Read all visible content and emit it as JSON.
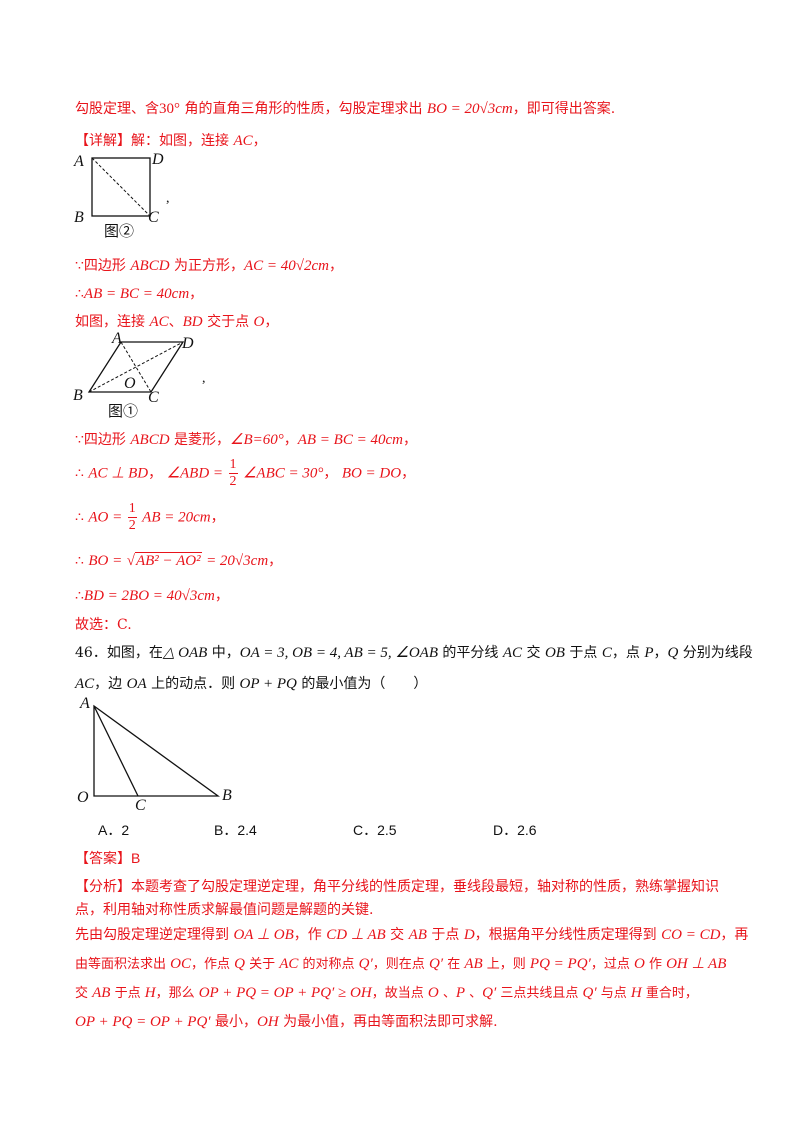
{
  "l1": {
    "pre": "勾股定理、含",
    "deg": "30°",
    "mid": " 角的直角三角形的性质，勾股定理求出 ",
    "eq": "BO = 20√3cm",
    "post": "，即可得出答案."
  },
  "l2": {
    "tag": "【详解】",
    "text": "解：如图，连接 ",
    "ac": "AC",
    "post": "，"
  },
  "fig2": {
    "A": "A",
    "B": "B",
    "C": "C",
    "D": "D",
    "caption": "图②",
    "comma": ","
  },
  "l3": {
    "because": "∵",
    "text": "四边形 ",
    "abcd": "ABCD",
    "mid": " 为正方形，",
    "eq": "AC = 40√2cm",
    "post": "，"
  },
  "l4": {
    "therefore": "∴",
    "eq": "AB = BC = 40cm",
    "post": "，"
  },
  "l5": {
    "text": "如图，连接 ",
    "ac": "AC",
    "sep": "、",
    "bd": "BD",
    "mid": " 交于点 ",
    "o": "O",
    "post": "，"
  },
  "fig1": {
    "A": "A",
    "B": "B",
    "C": "C",
    "D": "D",
    "O": "O",
    "caption": "图①",
    "comma": ","
  },
  "l6": {
    "because": "∵",
    "text": "四边形 ",
    "abcd": "ABCD",
    "mid": " 是菱形，",
    "angle": "∠B=60°",
    "sep": "，",
    "eq": "AB = BC = 40cm",
    "post": "，"
  },
  "l7": {
    "therefore": "∴",
    "perp": "AC ⊥ BD",
    "sep": "，",
    "lhs": "∠ABD =",
    "num": "1",
    "den": "2",
    "rhs": "∠ABC = 30°",
    "sep2": "，",
    "eq": "BO = DO",
    "post": "，"
  },
  "l8": {
    "therefore": "∴",
    "lhs": "AO =",
    "num": "1",
    "den": "2",
    "rhs": "AB = 20cm",
    "post": "，"
  },
  "l9": {
    "therefore": "∴",
    "lhs": "BO =",
    "rad": "AB² − AO²",
    "rhs": "= 20√3cm",
    "post": "，"
  },
  "l10": {
    "therefore": "∴",
    "eq": "BD = 2BO = 40√3cm",
    "post": "，"
  },
  "l11": {
    "text": "故选：C."
  },
  "q46": {
    "num": "46．",
    "text1": "如图，在",
    "tri": "△ OAB",
    "text2": " 中，",
    "cond": "OA = 3, OB = 4, AB = 5, ∠OAB",
    "text3": " 的平分线 ",
    "ac": "AC",
    "text4": " 交 ",
    "ob": "OB",
    "text5": " 于点 ",
    "c": "C",
    "text6": "，点 ",
    "p": "P",
    "text7": "，",
    "q": "Q",
    "text8": " 分别为线段",
    "line2a": "AC",
    "line2b": "，边 ",
    "oa": "OA",
    "line2c": " 上的动点．则 ",
    "expr": "OP + PQ",
    "line2d": " 的最小值为（　　）"
  },
  "fig46": {
    "A": "A",
    "O": "O",
    "C": "C",
    "B": "B"
  },
  "options": [
    {
      "letter": "A．",
      "value": "2"
    },
    {
      "letter": "B．",
      "value": "2.4"
    },
    {
      "letter": "C．",
      "value": "2.5"
    },
    {
      "letter": "D．",
      "value": "2.6"
    }
  ],
  "answer": {
    "tag": "【答案】",
    "value": "B"
  },
  "analysis": {
    "tag": "【分析】",
    "p1": "本题考查了勾股定理逆定理，角平分线的性质定理，垂线段最短，轴对称的性质，熟练掌握知识",
    "p2": "点，利用轴对称性质求解最值问题是解题的关键.",
    "p3a": "先由勾股定理逆定理得到 ",
    "p3b": "OA ⊥ OB",
    "p3c": "，作 ",
    "p3d": "CD ⊥ AB",
    "p3e": " 交 ",
    "p3f": "AB",
    "p3g": " 于点 ",
    "p3h": "D",
    "p3i": "，根据角平分线性质定理得到 ",
    "p3j": "CO = CD",
    "p3k": "，再",
    "p4a": "由等面积法求出 ",
    "p4b": "OC",
    "p4c": "，作点 ",
    "p4d": "Q",
    "p4e": " 关于 ",
    "p4f": "AC",
    "p4g": " 的对称点 ",
    "p4h": "Q′",
    "p4i": "，则在点 ",
    "p4j": "Q′",
    "p4k": " 在 ",
    "p4l": "AB",
    "p4m": " 上，则 ",
    "p4n": "PQ = PQ′",
    "p4o": "，过点 ",
    "p4p": "O",
    "p4q": " 作 ",
    "p4r": "OH ⊥ AB",
    "p5a": "交 ",
    "p5b": "AB",
    "p5c": " 于点 ",
    "p5d": "H",
    "p5e": "，那么 ",
    "p5f": "OP + PQ = OP + PQ′ ≥ OH",
    "p5g": "，故当点 ",
    "p5h": "O",
    "p5i": " 、",
    "p5j": "P",
    "p5k": " 、",
    "p5l": "Q′",
    "p5m": " 三点共线且点 ",
    "p5n": "Q′",
    "p5o": " 与点 ",
    "p5p": "H",
    "p5q": " 重合时，",
    "p6a": "OP + PQ = OP + PQ′",
    "p6b": " 最小，",
    "p6c": "OH",
    "p6d": " 为最小值，再由等面积法即可求解."
  }
}
